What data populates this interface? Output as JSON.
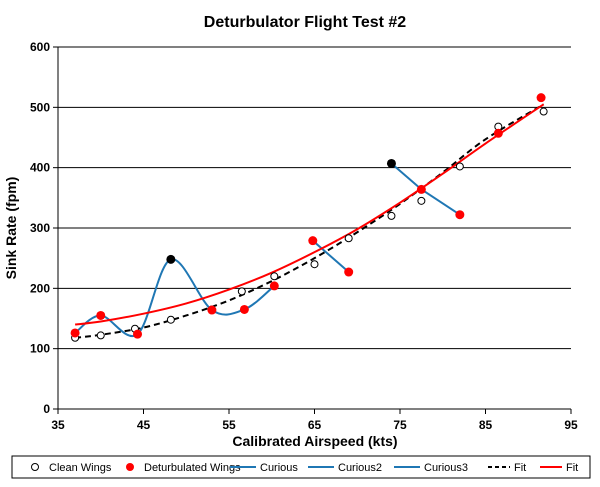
{
  "chart_data": {
    "type": "scatter",
    "title": "Deturbulator Flight Test #2",
    "xlabel": "Calibrated Airspeed  (kts)",
    "ylabel": "Sink Rate (fpm)",
    "xlim": [
      35,
      95
    ],
    "ylim": [
      0,
      600
    ],
    "xticks": [
      "35",
      "45",
      "55",
      "65",
      "75",
      "85",
      "95"
    ],
    "yticks": [
      "0",
      "100",
      "200",
      "300",
      "400",
      "500",
      "600"
    ],
    "grid": "horizontal",
    "legend_position": "bottom",
    "colors": {
      "clean": "#000000",
      "deturbulated": "#ff0000",
      "curious": "#1f77b4",
      "fit_clean": "#000000",
      "fit_deturbulated": "#ff0000",
      "highlight": "#000000"
    },
    "series": [
      {
        "name": "Clean Wings",
        "style": "hollow-marker",
        "points": [
          [
            37,
            118
          ],
          [
            40,
            122
          ],
          [
            44,
            133
          ],
          [
            48.2,
            148
          ],
          [
            53,
            165
          ],
          [
            56.5,
            195
          ],
          [
            60.3,
            220
          ],
          [
            65,
            240
          ],
          [
            69,
            283
          ],
          [
            74,
            320
          ],
          [
            77.5,
            345
          ],
          [
            82,
            402
          ],
          [
            86.5,
            468
          ],
          [
            91.8,
            493
          ]
        ]
      },
      {
        "name": "Deturbulated Wings",
        "style": "filled-marker",
        "points": [
          [
            37,
            126
          ],
          [
            40,
            155
          ],
          [
            44.3,
            124
          ],
          [
            53,
            164
          ],
          [
            56.8,
            165
          ],
          [
            60.3,
            204
          ],
          [
            64.8,
            279
          ],
          [
            69,
            227
          ],
          [
            77.5,
            364
          ],
          [
            82,
            322
          ],
          [
            86.5,
            457
          ],
          [
            91.5,
            516
          ]
        ]
      },
      {
        "name": "Curious",
        "style": "smooth-line",
        "highlight": [
          48.2,
          248
        ],
        "points": [
          [
            37,
            126
          ],
          [
            40,
            155
          ],
          [
            44.3,
            124
          ],
          [
            48.2,
            248
          ],
          [
            53,
            164
          ],
          [
            56.8,
            165
          ],
          [
            60.3,
            204
          ]
        ]
      },
      {
        "name": "Curious2",
        "style": "line",
        "points": [
          [
            64.8,
            279
          ],
          [
            69,
            227
          ]
        ]
      },
      {
        "name": "Curious3",
        "style": "line",
        "highlight": [
          74,
          407
        ],
        "points": [
          [
            74,
            407
          ],
          [
            77.5,
            364
          ],
          [
            82,
            322
          ]
        ]
      },
      {
        "name": "Fit",
        "style": "dashed-line",
        "points": [
          [
            37,
            118
          ],
          [
            40,
            123
          ],
          [
            45,
            135
          ],
          [
            50,
            155
          ],
          [
            55,
            180
          ],
          [
            60,
            212
          ],
          [
            65,
            250
          ],
          [
            70,
            293
          ],
          [
            75,
            340
          ],
          [
            80,
            392
          ],
          [
            85,
            447
          ],
          [
            91.8,
            505
          ]
        ]
      },
      {
        "name": "Fit",
        "style": "red-line",
        "points": [
          [
            37,
            140
          ],
          [
            40,
            145
          ],
          [
            45,
            158
          ],
          [
            50,
            175
          ],
          [
            55,
            198
          ],
          [
            60,
            226
          ],
          [
            65,
            260
          ],
          [
            70,
            298
          ],
          [
            75,
            342
          ],
          [
            80,
            390
          ],
          [
            85,
            440
          ],
          [
            91.8,
            505
          ]
        ]
      }
    ]
  }
}
